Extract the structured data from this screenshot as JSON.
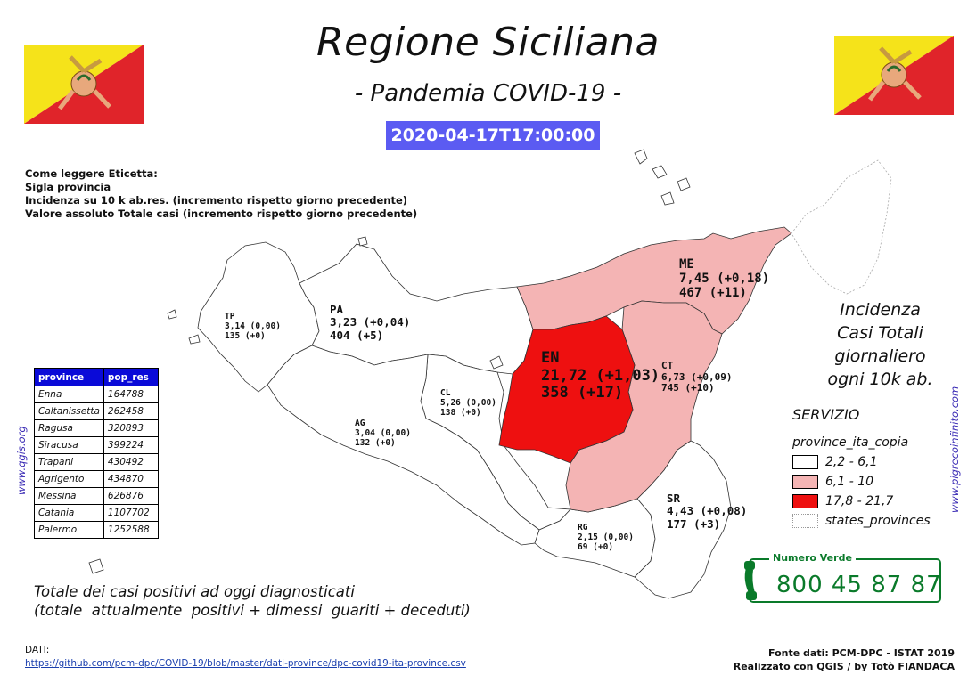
{
  "header": {
    "title": "Regione Siciliana",
    "subtitle": "- Pandemia COVID-19 -",
    "datetime": "2020-04-17T17:00:00"
  },
  "reading_guide": {
    "lines": [
      "Come leggere Eticetta:",
      "Sigla provincia",
      "Incidenza su 10 k ab.res. (incremento rispetto giorno precedente)",
      "Valore assoluto Totale casi (incremento rispetto giorno precedente)"
    ]
  },
  "provinces": [
    {
      "code": "TP",
      "incidence": "3,14 (0,00)",
      "total": "135 (+0)",
      "fill": "#ffffff"
    },
    {
      "code": "PA",
      "incidence": "3,23 (+0,04)",
      "total": "404 (+5)",
      "fill": "#ffffff"
    },
    {
      "code": "ME",
      "incidence": "7,45 (+0,18)",
      "total": "467 (+11)",
      "fill": "#f4b4b4"
    },
    {
      "code": "EN",
      "incidence": "21,72 (+1,03)",
      "total": "358 (+17)",
      "fill": "#ee1010"
    },
    {
      "code": "CT",
      "incidence": "6,73 (+0,09)",
      "total": "745 (+10)",
      "fill": "#f4b4b4"
    },
    {
      "code": "CL",
      "incidence": "5,26 (0,00)",
      "total": "138 (+0)",
      "fill": "#ffffff"
    },
    {
      "code": "AG",
      "incidence": "3,04 (0,00)",
      "total": "132 (+0)",
      "fill": "#ffffff"
    },
    {
      "code": "SR",
      "incidence": "4,43 (+0,08)",
      "total": "177 (+3)",
      "fill": "#ffffff"
    },
    {
      "code": "RG",
      "incidence": "2,15 (0,00)",
      "total": "69 (+0)",
      "fill": "#ffffff"
    }
  ],
  "population_table": {
    "headers": [
      "province",
      "pop_res"
    ],
    "rows": [
      [
        "Enna",
        "164788"
      ],
      [
        "Caltanissetta",
        "262458"
      ],
      [
        "Ragusa",
        "320893"
      ],
      [
        "Siracusa",
        "399224"
      ],
      [
        "Trapani",
        "430492"
      ],
      [
        "Agrigento",
        "434870"
      ],
      [
        "Messina",
        "626876"
      ],
      [
        "Catania",
        "1107702"
      ],
      [
        "Palermo",
        "1252588"
      ]
    ]
  },
  "side_credits": {
    "left": "www.qgis.org",
    "right": "www.pigrecoinfinito.com"
  },
  "incidence_legend": {
    "title_lines": [
      "Incidenza",
      "Casi Totali",
      "giornaliero",
      "ogni 10k ab."
    ],
    "service": "SERVIZIO",
    "layer": "province_ita_copia",
    "classes": [
      {
        "label": "2,2 - 6,1",
        "color": "#ffffff"
      },
      {
        "label": "6,1 - 10",
        "color": "#f4b4b4"
      },
      {
        "label": "17,8 - 21,7",
        "color": "#ee1010"
      }
    ],
    "states_label": "states_provinces"
  },
  "numero_verde": {
    "label": "Numero Verde",
    "number": "800 45 87 87",
    "color": "#0a7a2a"
  },
  "totale_note": {
    "line1": "Totale dei casi positivi ad oggi diagnosticati",
    "line2": "(totale  attualmente  positivi + dimessi  guariti + deceduti)"
  },
  "dati": {
    "label": "DATI:",
    "url": "https://github.com/pcm-dpc/COVID-19/blob/master/dati-province/dpc-covid19-ita-province.csv"
  },
  "fonte": {
    "line1": "Fonte dati: PCM-DPC - ISTAT 2019",
    "line2": "Realizzato con QGIS / by Totò FIANDACA"
  }
}
